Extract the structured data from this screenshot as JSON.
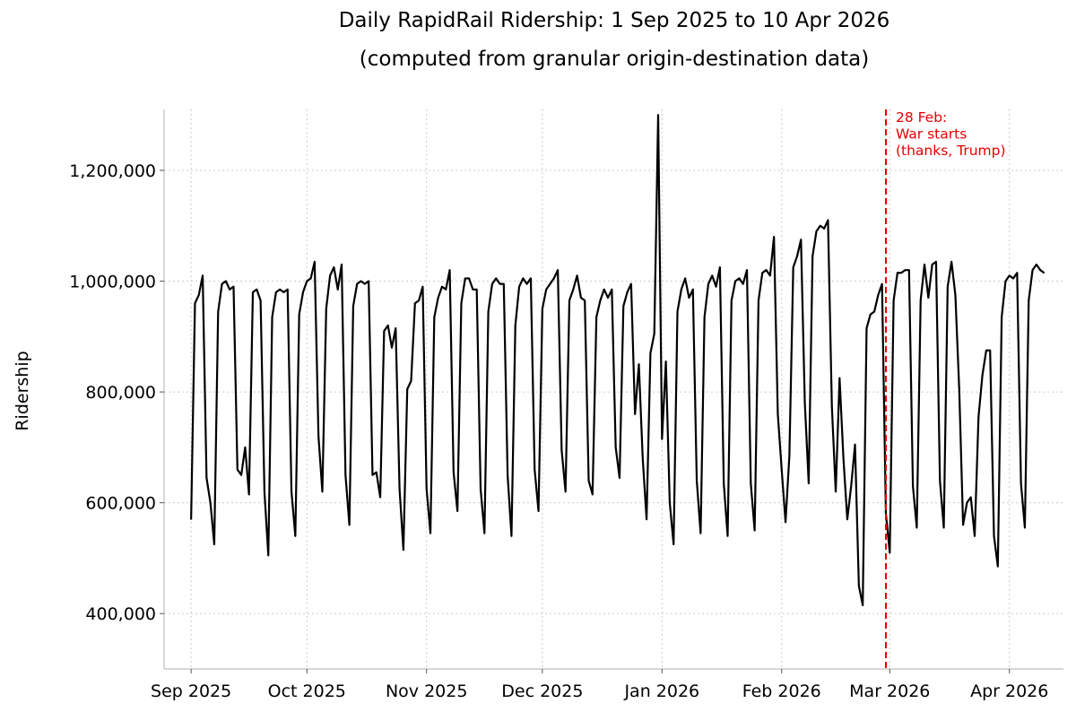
{
  "chart_data": {
    "type": "line",
    "title": "Daily RapidRail Ridership: 1 Sep 2025 to 10 Apr 2026",
    "subtitle": "(computed from granular origin-destination data)",
    "xlabel": "",
    "ylabel": "Ridership",
    "x_start": "2025-09-01",
    "x_end": "2026-04-10",
    "xlim_days": [
      -7,
      226
    ],
    "ylim": [
      300000,
      1310000
    ],
    "grid": true,
    "x_ticks": [
      {
        "day": 0,
        "label": "Sep 2025"
      },
      {
        "day": 30,
        "label": "Oct 2025"
      },
      {
        "day": 61,
        "label": "Nov 2025"
      },
      {
        "day": 91,
        "label": "Dec 2025"
      },
      {
        "day": 122,
        "label": "Jan 2026"
      },
      {
        "day": 153,
        "label": "Feb 2026"
      },
      {
        "day": 181,
        "label": "Mar 2026"
      },
      {
        "day": 212,
        "label": "Apr 2026"
      }
    ],
    "y_ticks": [
      {
        "value": 400000,
        "label": "400,000"
      },
      {
        "value": 600000,
        "label": "600,000"
      },
      {
        "value": 800000,
        "label": "800,000"
      },
      {
        "value": 1000000,
        "label": "1,000,000"
      },
      {
        "value": 1200000,
        "label": "1,200,000"
      }
    ],
    "series": [
      {
        "name": "Ridership",
        "color": "#000000",
        "values": [
          570000,
          960000,
          975000,
          1010000,
          645000,
          600000,
          525000,
          945000,
          995000,
          1000000,
          985000,
          990000,
          660000,
          650000,
          700000,
          615000,
          980000,
          985000,
          965000,
          620000,
          505000,
          935000,
          980000,
          985000,
          980000,
          985000,
          620000,
          540000,
          940000,
          980000,
          1000000,
          1005000,
          1035000,
          720000,
          620000,
          950000,
          1010000,
          1025000,
          985000,
          1030000,
          650000,
          560000,
          955000,
          995000,
          1000000,
          995000,
          1000000,
          650000,
          655000,
          610000,
          910000,
          920000,
          880000,
          915000,
          625000,
          515000,
          805000,
          820000,
          960000,
          965000,
          990000,
          625000,
          545000,
          935000,
          970000,
          990000,
          985000,
          1020000,
          655000,
          585000,
          960000,
          1005000,
          1005000,
          985000,
          985000,
          625000,
          545000,
          945000,
          995000,
          1005000,
          995000,
          995000,
          650000,
          540000,
          920000,
          990000,
          1005000,
          995000,
          1005000,
          660000,
          585000,
          950000,
          985000,
          995000,
          1005000,
          1020000,
          695000,
          620000,
          965000,
          985000,
          1010000,
          970000,
          965000,
          640000,
          615000,
          935000,
          965000,
          985000,
          970000,
          985000,
          700000,
          645000,
          955000,
          980000,
          995000,
          760000,
          850000,
          680000,
          570000,
          870000,
          905000,
          1300000,
          715000,
          855000,
          600000,
          525000,
          945000,
          985000,
          1005000,
          970000,
          985000,
          640000,
          545000,
          935000,
          995000,
          1010000,
          990000,
          1025000,
          635000,
          540000,
          965000,
          1000000,
          1005000,
          995000,
          1020000,
          635000,
          550000,
          965000,
          1015000,
          1020000,
          1010000,
          1080000,
          760000,
          660000,
          565000,
          685000,
          1025000,
          1045000,
          1075000,
          780000,
          635000,
          1045000,
          1090000,
          1100000,
          1095000,
          1110000,
          775000,
          620000,
          825000,
          680000,
          570000,
          630000,
          705000,
          450000,
          415000,
          915000,
          940000,
          945000,
          975000,
          995000,
          580000,
          510000,
          965000,
          1015000,
          1015000,
          1020000,
          1020000,
          630000,
          555000,
          965000,
          1030000,
          970000,
          1030000,
          1035000,
          640000,
          555000,
          990000,
          1035000,
          975000,
          805000,
          560000,
          600000,
          610000,
          540000,
          755000,
          830000,
          875000,
          875000,
          540000,
          485000,
          935000,
          1000000,
          1010000,
          1005000,
          1015000,
          635000,
          555000,
          965000,
          1020000,
          1030000,
          1020000,
          1015000
        ]
      }
    ],
    "annotations": [
      {
        "day": 180,
        "lines": [
          "28 Feb:",
          "War starts",
          "(thanks, Trump)"
        ],
        "color": "#e60000"
      }
    ]
  }
}
